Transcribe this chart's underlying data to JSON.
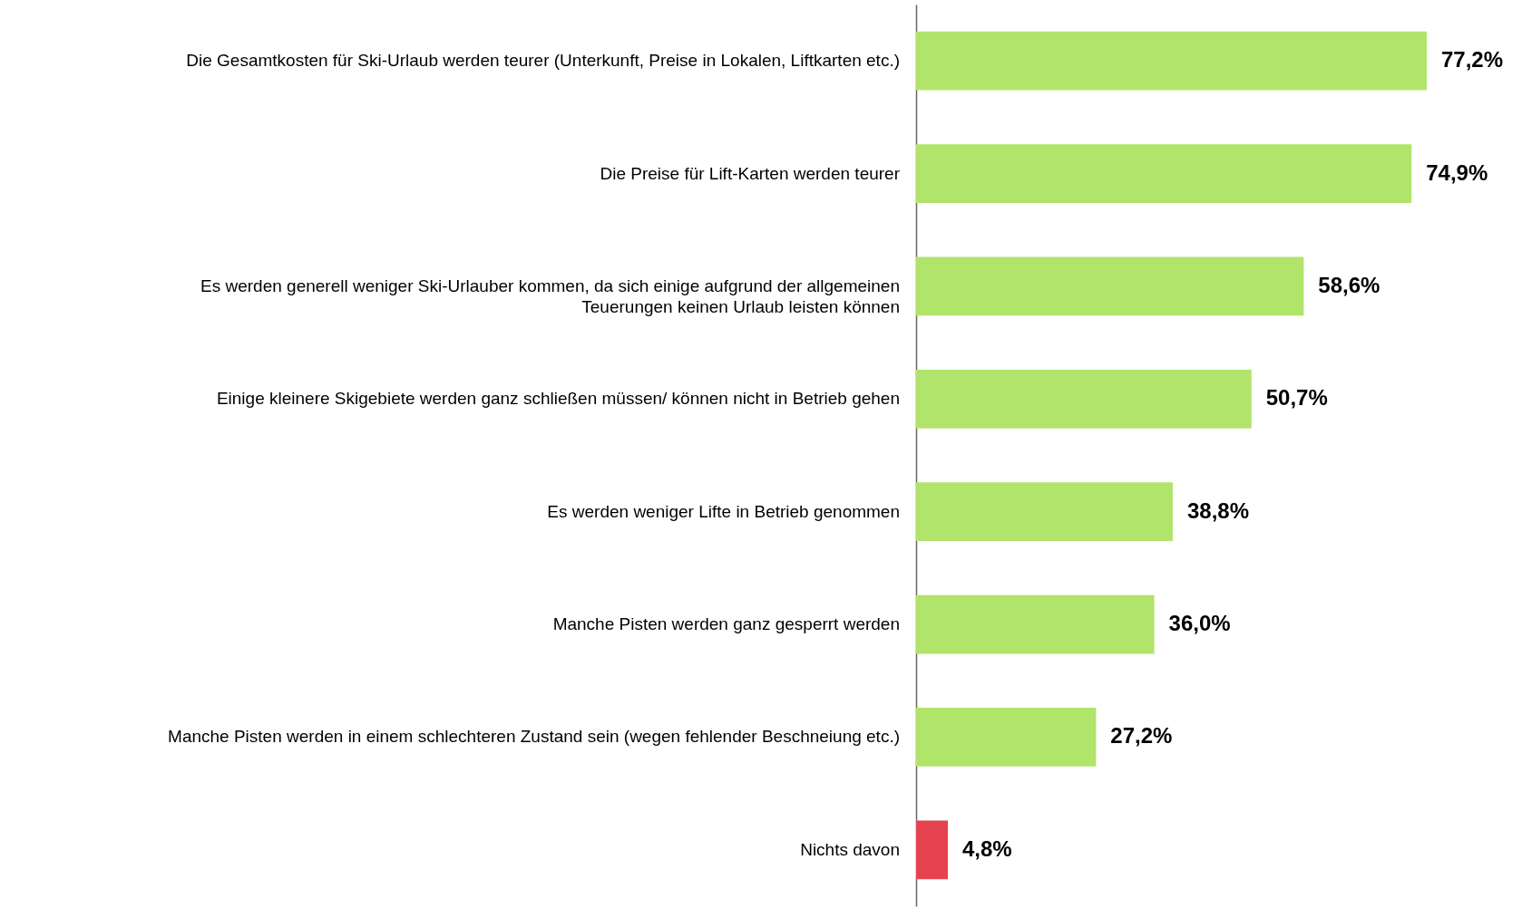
{
  "chart_data": {
    "type": "bar",
    "orientation": "horizontal",
    "categories": [
      "Die Gesamtkosten für Ski-Urlaub werden teurer (Unterkunft, Preise in Lokalen, Liftkarten etc.)",
      "Die Preise für Lift-Karten werden teurer",
      "Es werden generell weniger Ski-Urlauber kommen, da sich einige aufgrund der allgemeinen Teuerungen keinen Urlaub leisten können",
      "Einige kleinere Skigebiete werden ganz schließen müssen/ können nicht in Betrieb gehen",
      "Es werden weniger Lifte in Betrieb genommen",
      "Manche Pisten werden ganz gesperrt werden",
      "Manche Pisten werden in einem schlechteren Zustand sein (wegen fehlender Beschneiung etc.)",
      "Nichts davon"
    ],
    "values": [
      77.2,
      74.9,
      58.6,
      50.7,
      38.8,
      36.0,
      27.2,
      4.8
    ],
    "value_labels": [
      "77,2%",
      "74,9%",
      "58,6%",
      "50,7%",
      "38,8%",
      "36,0%",
      "27,2%",
      "4,8%"
    ],
    "colors": [
      "#b1e46b",
      "#b1e46b",
      "#b1e46b",
      "#b1e46b",
      "#b1e46b",
      "#b1e46b",
      "#b1e46b",
      "#e5424f"
    ],
    "grid": false
  }
}
